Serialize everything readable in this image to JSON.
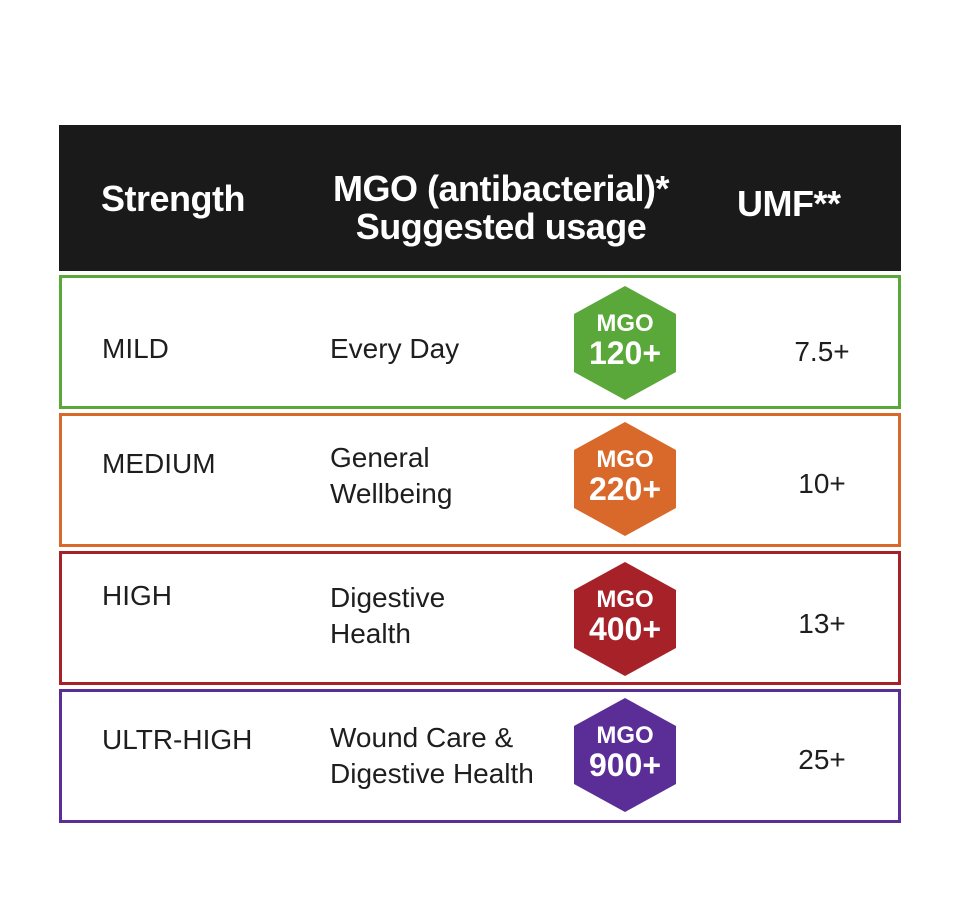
{
  "header": {
    "strength": "Strength",
    "mgo_line1": "MGO (antibacterial)*",
    "mgo_line2": "Suggested usage",
    "umf": "UMF**"
  },
  "rows": [
    {
      "strength": "MILD",
      "usage_line1": "Every Day",
      "usage_line2": "",
      "badge_label": "MGO",
      "badge_value": "120+",
      "umf": "7.5+",
      "color": "#5aa83a"
    },
    {
      "strength": "MEDIUM",
      "usage_line1": "General",
      "usage_line2": "Wellbeing",
      "badge_label": "MGO",
      "badge_value": "220+",
      "umf": "10+",
      "color": "#d9692a"
    },
    {
      "strength": "HIGH",
      "usage_line1": "Digestive",
      "usage_line2": "Health",
      "badge_label": "MGO",
      "badge_value": "400+",
      "umf": "13+",
      "color": "#a62128"
    },
    {
      "strength": "ULTR-HIGH",
      "usage_line1": "Wound Care &",
      "usage_line2": "Digestive Health",
      "badge_label": "MGO",
      "badge_value": "900+",
      "umf": "25+",
      "color": "#5b2d96"
    }
  ]
}
